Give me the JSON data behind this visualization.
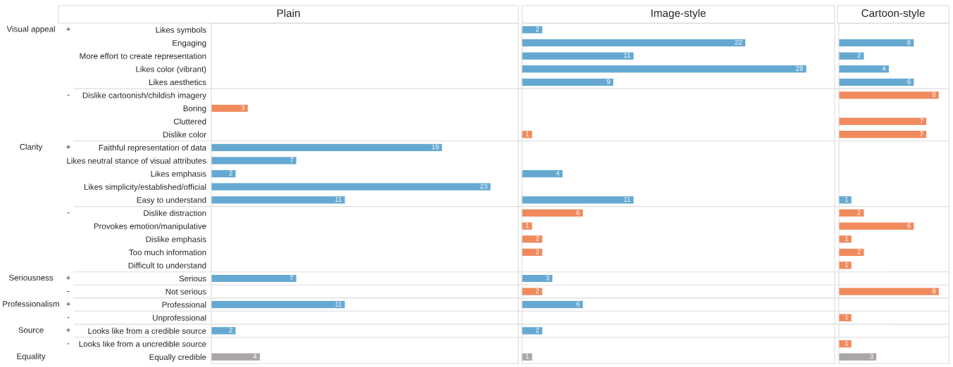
{
  "chart_data": [
    {
      "type": "bar",
      "orientation": "horizontal",
      "title": "Plain",
      "data_labels": true,
      "tick_labels": "y",
      "categories": [
        "Likes symbols",
        "Engaging",
        "More effort to create representation",
        "Likes color (vibrant)",
        "Likes aesthetics",
        "Dislike cartoonish/childish imagery",
        "Boring",
        "Cluttered",
        "Dislike color",
        "Faithful representation of data",
        "Likes neutral stance of visual attributes",
        "Likes emphasis",
        "Likes simplicity/established/official",
        "Easy to understand",
        "Dislike distraction",
        "Provokes emotion/manipulative",
        "Dislike emphasis",
        "Too much information",
        "Difficult to understand",
        "Serious",
        "Not serious",
        "Professional",
        "Unprofessional",
        "Looks like from a credible source",
        "Looks like from a uncredible source",
        "Equally credible"
      ],
      "values": [
        null,
        null,
        null,
        null,
        null,
        null,
        3,
        null,
        null,
        19,
        7,
        2,
        23,
        11,
        null,
        null,
        null,
        null,
        null,
        7,
        null,
        11,
        null,
        2,
        null,
        4
      ],
      "colors": [
        null,
        null,
        null,
        null,
        null,
        null,
        "#f08a5d",
        null,
        null,
        "#65a9d2",
        "#65a9d2",
        "#65a9d2",
        "#65a9d2",
        "#65a9d2",
        null,
        null,
        null,
        null,
        null,
        "#65a9d2",
        null,
        "#65a9d2",
        null,
        "#65a9d2",
        null,
        "#aaa6a6"
      ],
      "annotations": [
        "Visual appeal",
        "+",
        "-",
        "Clarity",
        "+",
        "-",
        "Seriousness",
        "+",
        "-",
        "Professionalism",
        "+",
        "-",
        "Source",
        "+",
        "-",
        "Equality"
      ]
    },
    {
      "type": "bar",
      "orientation": "horizontal",
      "title": "Image-style",
      "data_labels": true,
      "tick_labels": false,
      "categories": [
        "Likes symbols",
        "Engaging",
        "More effort to create representation",
        "Likes color (vibrant)",
        "Likes aesthetics",
        "Dislike cartoonish/childish imagery",
        "Boring",
        "Cluttered",
        "Dislike color",
        "Faithful representation of data",
        "Likes neutral stance of visual attributes",
        "Likes emphasis",
        "Likes simplicity/established/official",
        "Easy to understand",
        "Dislike distraction",
        "Provokes emotion/manipulative",
        "Dislike emphasis",
        "Too much information",
        "Difficult to understand",
        "Serious",
        "Not serious",
        "Professional",
        "Unprofessional",
        "Looks like from a credible source",
        "Looks like from a uncredible source",
        "Equally credible"
      ],
      "values": [
        2,
        22,
        11,
        28,
        9,
        null,
        null,
        null,
        1,
        null,
        null,
        4,
        null,
        11,
        6,
        1,
        2,
        2,
        null,
        3,
        2,
        6,
        null,
        2,
        null,
        1
      ],
      "colors": [
        "#65a9d2",
        "#65a9d2",
        "#65a9d2",
        "#65a9d2",
        "#65a9d2",
        null,
        null,
        null,
        "#f08a5d",
        null,
        null,
        "#65a9d2",
        null,
        "#65a9d2",
        "#f08a5d",
        "#f08a5d",
        "#f08a5d",
        "#f08a5d",
        null,
        "#65a9d2",
        "#f08a5d",
        "#65a9d2",
        null,
        "#65a9d2",
        null,
        "#aaa6a6"
      ]
    },
    {
      "type": "bar",
      "orientation": "horizontal",
      "title": "Cartoon-style",
      "data_labels": true,
      "tick_labels": false,
      "categories": [
        "Likes symbols",
        "Engaging",
        "More effort to create representation",
        "Likes color (vibrant)",
        "Likes aesthetics",
        "Dislike cartoonish/childish imagery",
        "Boring",
        "Cluttered",
        "Dislike color",
        "Faithful representation of data",
        "Likes neutral stance of visual attributes",
        "Likes emphasis",
        "Likes simplicity/established/official",
        "Easy to understand",
        "Dislike distraction",
        "Provokes emotion/manipulative",
        "Dislike emphasis",
        "Too much information",
        "Difficult to understand",
        "Serious",
        "Not serious",
        "Professional",
        "Unprofessional",
        "Looks like from a credible source",
        "Looks like from a uncredible source",
        "Equally credible"
      ],
      "values": [
        null,
        6,
        2,
        4,
        6,
        8,
        null,
        7,
        7,
        null,
        null,
        null,
        null,
        1,
        2,
        6,
        1,
        2,
        1,
        null,
        8,
        null,
        1,
        null,
        1,
        3
      ],
      "colors": [
        null,
        "#65a9d2",
        "#65a9d2",
        "#65a9d2",
        "#65a9d2",
        "#f08a5d",
        null,
        "#f08a5d",
        "#f08a5d",
        null,
        null,
        null,
        null,
        "#65a9d2",
        "#f08a5d",
        "#f08a5d",
        "#f08a5d",
        "#f08a5d",
        "#f08a5d",
        null,
        "#f08a5d",
        null,
        "#f08a5d",
        null,
        "#f08a5d",
        "#aaa6a6"
      ]
    }
  ]
}
